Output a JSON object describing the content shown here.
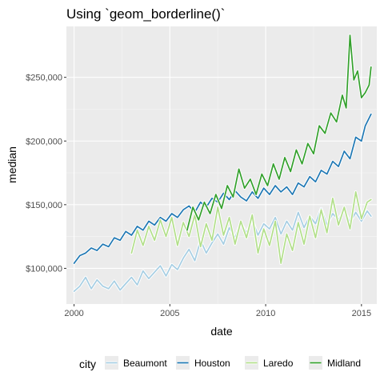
{
  "chart_data": {
    "type": "line",
    "title": "Using `geom_borderline()`",
    "xlabel": "date",
    "ylabel": "median",
    "xlim": [
      1999.6,
      2015.8
    ],
    "ylim": [
      72000,
      290000
    ],
    "x_ticks": [
      2000,
      2005,
      2010,
      2015
    ],
    "x_tick_labels": [
      "2000",
      "2005",
      "2010",
      "2015"
    ],
    "y_ticks": [
      100000,
      150000,
      200000,
      250000
    ],
    "y_tick_labels": [
      "$100,000",
      "$150,000",
      "$200,000",
      "$250,000"
    ],
    "grid": true,
    "legend_title": "city",
    "legend_position": "bottom",
    "series": [
      {
        "name": "Beaumont",
        "color": "#a6cee3",
        "points": [
          [
            2000.0,
            82000
          ],
          [
            2000.3,
            86000
          ],
          [
            2000.6,
            93000
          ],
          [
            2000.9,
            84000
          ],
          [
            2001.2,
            91000
          ],
          [
            2001.5,
            86000
          ],
          [
            2001.8,
            84000
          ],
          [
            2002.1,
            90000
          ],
          [
            2002.4,
            83000
          ],
          [
            2002.7,
            88000
          ],
          [
            2003.0,
            93000
          ],
          [
            2003.3,
            87000
          ],
          [
            2003.6,
            98000
          ],
          [
            2003.9,
            92000
          ],
          [
            2004.2,
            97000
          ],
          [
            2004.5,
            102000
          ],
          [
            2004.8,
            94000
          ],
          [
            2005.1,
            103000
          ],
          [
            2005.4,
            99000
          ],
          [
            2005.7,
            108000
          ],
          [
            2006.0,
            115000
          ],
          [
            2006.3,
            106000
          ],
          [
            2006.6,
            122000
          ],
          [
            2006.9,
            112000
          ],
          [
            2007.2,
            120000
          ],
          [
            2007.5,
            127000
          ],
          [
            2007.8,
            119000
          ],
          [
            2008.1,
            132000
          ],
          [
            2008.4,
            124000
          ],
          [
            2008.7,
            136000
          ],
          [
            2009.0,
            128000
          ],
          [
            2009.3,
            138000
          ],
          [
            2009.6,
            126000
          ],
          [
            2009.9,
            135000
          ],
          [
            2010.2,
            131000
          ],
          [
            2010.5,
            140000
          ],
          [
            2010.8,
            127000
          ],
          [
            2011.1,
            137000
          ],
          [
            2011.4,
            130000
          ],
          [
            2011.7,
            144000
          ],
          [
            2012.0,
            132000
          ],
          [
            2012.3,
            141000
          ],
          [
            2012.6,
            135000
          ],
          [
            2012.9,
            147000
          ],
          [
            2013.2,
            134000
          ],
          [
            2013.5,
            143000
          ],
          [
            2013.8,
            138000
          ],
          [
            2014.1,
            146000
          ],
          [
            2014.4,
            136000
          ],
          [
            2014.7,
            144000
          ],
          [
            2015.0,
            137000
          ],
          [
            2015.3,
            145000
          ],
          [
            2015.5,
            141000
          ]
        ]
      },
      {
        "name": "Houston",
        "color": "#1f78b4",
        "points": [
          [
            2000.0,
            104000
          ],
          [
            2000.3,
            110000
          ],
          [
            2000.6,
            112000
          ],
          [
            2000.9,
            116000
          ],
          [
            2001.2,
            114000
          ],
          [
            2001.5,
            119000
          ],
          [
            2001.8,
            117000
          ],
          [
            2002.1,
            124000
          ],
          [
            2002.4,
            122000
          ],
          [
            2002.7,
            129000
          ],
          [
            2003.0,
            126000
          ],
          [
            2003.3,
            133000
          ],
          [
            2003.6,
            130000
          ],
          [
            2003.9,
            137000
          ],
          [
            2004.2,
            134000
          ],
          [
            2004.5,
            140000
          ],
          [
            2004.8,
            137000
          ],
          [
            2005.1,
            143000
          ],
          [
            2005.4,
            140000
          ],
          [
            2005.7,
            146000
          ],
          [
            2006.0,
            149000
          ],
          [
            2006.3,
            144000
          ],
          [
            2006.6,
            152000
          ],
          [
            2006.9,
            148000
          ],
          [
            2007.2,
            155000
          ],
          [
            2007.5,
            152000
          ],
          [
            2007.8,
            159000
          ],
          [
            2008.1,
            154000
          ],
          [
            2008.4,
            161000
          ],
          [
            2008.7,
            156000
          ],
          [
            2009.0,
            153000
          ],
          [
            2009.3,
            160000
          ],
          [
            2009.6,
            155000
          ],
          [
            2009.9,
            163000
          ],
          [
            2010.2,
            158000
          ],
          [
            2010.5,
            165000
          ],
          [
            2010.8,
            160000
          ],
          [
            2011.1,
            164000
          ],
          [
            2011.4,
            158000
          ],
          [
            2011.7,
            167000
          ],
          [
            2012.0,
            164000
          ],
          [
            2012.3,
            172000
          ],
          [
            2012.6,
            168000
          ],
          [
            2012.9,
            177000
          ],
          [
            2013.2,
            174000
          ],
          [
            2013.5,
            184000
          ],
          [
            2013.8,
            180000
          ],
          [
            2014.1,
            192000
          ],
          [
            2014.4,
            186000
          ],
          [
            2014.7,
            203000
          ],
          [
            2015.0,
            200000
          ],
          [
            2015.2,
            212000
          ],
          [
            2015.5,
            221000
          ]
        ]
      },
      {
        "name": "Laredo",
        "color": "#b2df8a",
        "points": [
          [
            2003.0,
            112000
          ],
          [
            2003.3,
            130000
          ],
          [
            2003.6,
            118000
          ],
          [
            2003.9,
            133000
          ],
          [
            2004.2,
            122000
          ],
          [
            2004.5,
            138000
          ],
          [
            2004.8,
            125000
          ],
          [
            2005.1,
            140000
          ],
          [
            2005.4,
            118000
          ],
          [
            2005.7,
            136000
          ],
          [
            2006.0,
            125000
          ],
          [
            2006.3,
            142000
          ],
          [
            2006.6,
            117000
          ],
          [
            2006.9,
            135000
          ],
          [
            2007.2,
            122000
          ],
          [
            2007.5,
            148000
          ],
          [
            2007.8,
            126000
          ],
          [
            2008.1,
            140000
          ],
          [
            2008.4,
            119000
          ],
          [
            2008.7,
            137000
          ],
          [
            2009.0,
            124000
          ],
          [
            2009.3,
            142000
          ],
          [
            2009.6,
            112000
          ],
          [
            2009.9,
            131000
          ],
          [
            2010.2,
            118000
          ],
          [
            2010.5,
            137000
          ],
          [
            2010.8,
            104000
          ],
          [
            2011.1,
            127000
          ],
          [
            2011.4,
            114000
          ],
          [
            2011.7,
            136000
          ],
          [
            2012.0,
            119000
          ],
          [
            2012.3,
            141000
          ],
          [
            2012.6,
            124000
          ],
          [
            2012.9,
            146000
          ],
          [
            2013.2,
            128000
          ],
          [
            2013.5,
            155000
          ],
          [
            2013.8,
            134000
          ],
          [
            2014.1,
            148000
          ],
          [
            2014.4,
            131000
          ],
          [
            2014.7,
            160000
          ],
          [
            2015.0,
            139000
          ],
          [
            2015.3,
            152000
          ],
          [
            2015.5,
            154000
          ]
        ]
      },
      {
        "name": "Midland",
        "color": "#33a02c",
        "points": [
          [
            2005.9,
            130000
          ],
          [
            2006.2,
            148000
          ],
          [
            2006.5,
            138000
          ],
          [
            2006.8,
            152000
          ],
          [
            2007.1,
            143000
          ],
          [
            2007.4,
            158000
          ],
          [
            2007.7,
            147000
          ],
          [
            2008.0,
            165000
          ],
          [
            2008.3,
            156000
          ],
          [
            2008.6,
            178000
          ],
          [
            2008.9,
            163000
          ],
          [
            2009.2,
            170000
          ],
          [
            2009.5,
            158000
          ],
          [
            2009.8,
            174000
          ],
          [
            2010.1,
            165000
          ],
          [
            2010.4,
            182000
          ],
          [
            2010.7,
            170000
          ],
          [
            2011.0,
            187000
          ],
          [
            2011.3,
            176000
          ],
          [
            2011.6,
            193000
          ],
          [
            2011.9,
            182000
          ],
          [
            2012.2,
            198000
          ],
          [
            2012.5,
            190000
          ],
          [
            2012.8,
            212000
          ],
          [
            2013.1,
            206000
          ],
          [
            2013.4,
            222000
          ],
          [
            2013.7,
            215000
          ],
          [
            2014.0,
            236000
          ],
          [
            2014.2,
            226000
          ],
          [
            2014.4,
            283000
          ],
          [
            2014.6,
            248000
          ],
          [
            2014.8,
            255000
          ],
          [
            2015.0,
            234000
          ],
          [
            2015.2,
            238000
          ],
          [
            2015.4,
            244000
          ],
          [
            2015.5,
            258000
          ]
        ]
      }
    ]
  }
}
